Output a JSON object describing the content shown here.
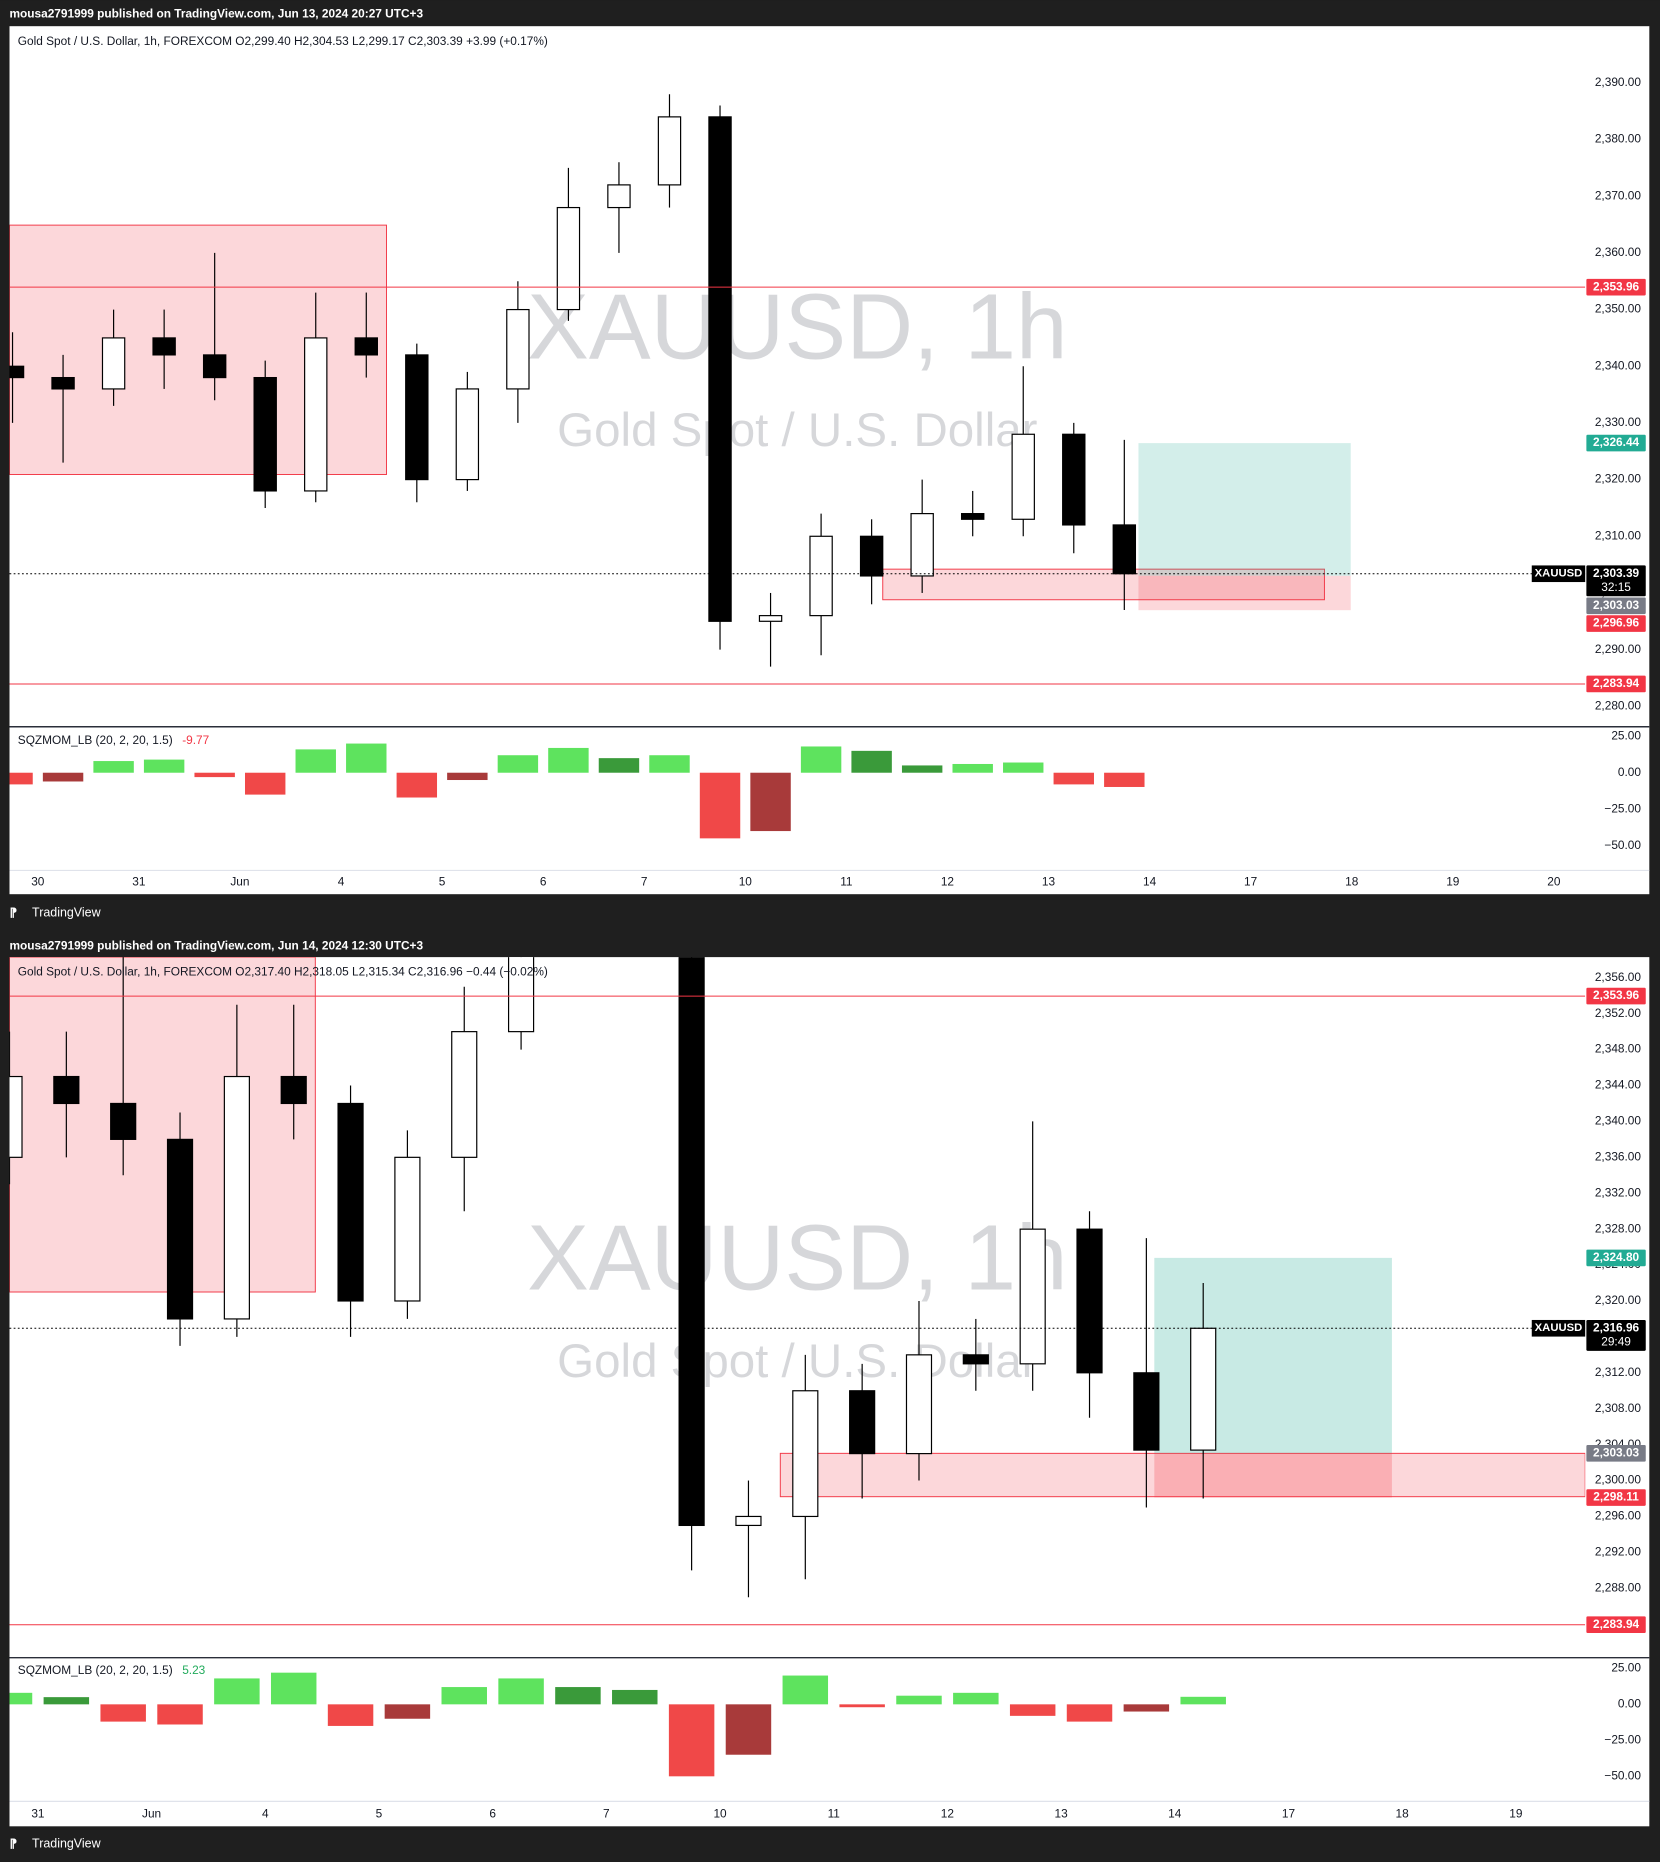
{
  "headers": [
    "mousa2791999 published on TradingView.com, Jun 13, 2024 20:27 UTC+3",
    "mousa2791999 published on TradingView.com, Jun 14, 2024 12:30 UTC+3"
  ],
  "brand": "TradingView",
  "chart_data": [
    {
      "type": "candlestick",
      "legend": "Gold Spot / U.S. Dollar, 1h, FOREXCOM  O2,299.40  H2,304.53  L2,299.17  C2,303.39  +3.99 (+0.17%)",
      "watermark": "XAUUSD, 1h",
      "watermark_sub": "Gold Spot / U.S. Dollar",
      "xlim": [
        -0.28,
        15.31
      ],
      "xticks": [
        {
          "value": 0,
          "label": "30"
        },
        {
          "value": 1,
          "label": "31"
        },
        {
          "value": 2,
          "label": "Jun"
        },
        {
          "value": 3,
          "label": "4"
        },
        {
          "value": 4,
          "label": "5"
        },
        {
          "value": 5,
          "label": "6"
        },
        {
          "value": 6,
          "label": "7"
        },
        {
          "value": 7,
          "label": "10"
        },
        {
          "value": 8,
          "label": "11"
        },
        {
          "value": 9,
          "label": "12"
        },
        {
          "value": 10,
          "label": "13"
        },
        {
          "value": 11,
          "label": "14"
        },
        {
          "value": 12,
          "label": "17"
        },
        {
          "value": 13,
          "label": "18"
        },
        {
          "value": 14,
          "label": "19"
        },
        {
          "value": 15,
          "label": "20"
        }
      ],
      "ylim": [
        2276.6,
        2400
      ],
      "yticks": [
        {
          "value": 2280,
          "label": "2,280.00"
        },
        {
          "value": 2290,
          "label": "2,290.00"
        },
        {
          "value": 2300,
          "label": "2,300.00"
        },
        {
          "value": 2310,
          "label": "2,310.00"
        },
        {
          "value": 2320,
          "label": "2,320.00"
        },
        {
          "value": 2330,
          "label": "2,330.00"
        },
        {
          "value": 2340,
          "label": "2,340.00"
        },
        {
          "value": 2350,
          "label": "2,350.00"
        },
        {
          "value": 2360,
          "label": "2,360.00"
        },
        {
          "value": 2370,
          "label": "2,370.00"
        },
        {
          "value": 2380,
          "label": "2,380.00"
        },
        {
          "value": 2390,
          "label": "2,390.00"
        }
      ],
      "grid": false,
      "up_color": "#ffffff",
      "down_color": "#000000",
      "wick_color": "#000000",
      "x": [
        -0.25,
        0.25,
        0.75,
        1.25,
        1.75,
        2.25,
        2.75,
        3.25,
        3.75,
        4.25,
        4.75,
        5.25,
        5.75,
        6.25,
        6.75,
        7.25,
        7.75,
        8.25,
        8.75,
        9.25,
        9.75,
        10.25,
        10.75
      ],
      "open": [
        2340,
        2338,
        2336,
        2345,
        2342,
        2338,
        2318,
        2345,
        2342,
        2320,
        2336,
        2350,
        2368,
        2372,
        2384,
        2295,
        2296,
        2310,
        2303,
        2314,
        2313,
        2328,
        2312
      ],
      "high": [
        2346,
        2342,
        2350,
        2350,
        2360,
        2341,
        2353,
        2353,
        2344,
        2339,
        2355,
        2375,
        2376,
        2388,
        2386,
        2300,
        2314,
        2313,
        2320,
        2318,
        2340,
        2330,
        2327
      ],
      "low": [
        2330,
        2323,
        2333,
        2336,
        2334,
        2315,
        2316,
        2338,
        2316,
        2318,
        2330,
        2348,
        2360,
        2368,
        2290,
        2287,
        2289,
        2298,
        2300,
        2310,
        2310,
        2307,
        2297
      ],
      "close": [
        2338,
        2336,
        2345,
        2342,
        2338,
        2318,
        2345,
        2342,
        2320,
        2336,
        2350,
        2368,
        2372,
        2384,
        2295,
        2296,
        2310,
        2303,
        2314,
        2313,
        2328,
        2312,
        2303.39
      ],
      "zones": [
        {
          "x": [
            -0.28,
            3.45
          ],
          "y": [
            2364.9,
            2320.9
          ],
          "color": "rgba(242,54,69,0.2)",
          "border": "#f23645"
        },
        {
          "x": [
            8.36,
            12.73
          ],
          "y": [
            2304.2,
            2298.8
          ],
          "color": "rgba(242,54,69,0.2)",
          "border": "#f23645"
        },
        {
          "x": [
            10.89,
            12.99
          ],
          "y": [
            2326.44,
            2303.03
          ],
          "color": "rgba(34,171,148,0.2)"
        },
        {
          "x": [
            10.89,
            12.99
          ],
          "y": [
            2303.03,
            2296.96
          ],
          "color": "rgba(242,54,69,0.2)"
        }
      ],
      "levels": [
        {
          "value": 2353.96,
          "label": "2,353.96",
          "color": "#f23645",
          "line": "solid"
        },
        {
          "value": 2326.44,
          "label": "2,326.44",
          "color": "#22ab94"
        },
        {
          "value": 2303.39,
          "label": "2,303.39",
          "sub": "32:15",
          "symbol": "XAUUSD",
          "color": "#000000",
          "line": "dotted"
        },
        {
          "value": 2303.03,
          "label": "2,303.03",
          "color": "#787b86"
        },
        {
          "value": 2296.96,
          "label": "2,296.96",
          "color": "#f23645"
        },
        {
          "value": 2283.94,
          "label": "2,283.94",
          "color": "#f23645",
          "line": "solid"
        }
      ],
      "indicator": {
        "title": "SQZMOM_LB (20, 2, 20, 1.5)",
        "value": -9.77,
        "value_color": "#f23645",
        "ylim": [
          -67,
          30.7
        ],
        "yticks": [
          {
            "value": 25,
            "label": "25.00"
          },
          {
            "value": 0,
            "label": "0.00"
          },
          {
            "value": -25,
            "label": "−25.00"
          },
          {
            "value": -50,
            "label": "−50.00"
          }
        ],
        "colors": {
          "pos_up": "#5ee35e",
          "pos_down": "#3a9a3a",
          "neg_down": "#f04848",
          "neg_up": "#a83a3a"
        },
        "values": [
          -8,
          -6,
          8,
          9,
          -3,
          -15,
          16,
          20,
          -17,
          -5,
          12,
          17,
          10,
          12,
          -45,
          -40,
          18,
          15,
          5,
          6,
          7,
          -8,
          -9.77
        ]
      }
    },
    {
      "type": "candlestick",
      "legend": "Gold Spot / U.S. Dollar, 1h, FOREXCOM  O2,317.40  H2,318.05  L2,315.34  C2,316.96  −0.44 (−0.02%)",
      "watermark": "XAUUSD, 1h",
      "watermark_sub": "Gold Spot / U.S. Dollar",
      "xlim": [
        -0.25,
        13.61
      ],
      "xticks": [
        {
          "value": 0,
          "label": "31"
        },
        {
          "value": 1,
          "label": "Jun"
        },
        {
          "value": 2,
          "label": "4"
        },
        {
          "value": 3,
          "label": "5"
        },
        {
          "value": 4,
          "label": "6"
        },
        {
          "value": 5,
          "label": "7"
        },
        {
          "value": 6,
          "label": "10"
        },
        {
          "value": 7,
          "label": "11"
        },
        {
          "value": 8,
          "label": "12"
        },
        {
          "value": 9,
          "label": "13"
        },
        {
          "value": 10,
          "label": "14"
        },
        {
          "value": 11,
          "label": "17"
        },
        {
          "value": 12,
          "label": "18"
        },
        {
          "value": 13,
          "label": "19"
        }
      ],
      "ylim": [
        2280.4,
        2358.3
      ],
      "yticks": [
        {
          "value": 2288,
          "label": "2,288.00"
        },
        {
          "value": 2292,
          "label": "2,292.00"
        },
        {
          "value": 2296,
          "label": "2,296.00"
        },
        {
          "value": 2300,
          "label": "2,300.00"
        },
        {
          "value": 2304,
          "label": "2,304.00"
        },
        {
          "value": 2308,
          "label": "2,308.00"
        },
        {
          "value": 2312,
          "label": "2,312.00"
        },
        {
          "value": 2316,
          "label": "2,316.00"
        },
        {
          "value": 2320,
          "label": "2,320.00"
        },
        {
          "value": 2324,
          "label": "2,324.00"
        },
        {
          "value": 2328,
          "label": "2,328.00"
        },
        {
          "value": 2332,
          "label": "2,332.00"
        },
        {
          "value": 2336,
          "label": "2,336.00"
        },
        {
          "value": 2340,
          "label": "2,340.00"
        },
        {
          "value": 2344,
          "label": "2,344.00"
        },
        {
          "value": 2348,
          "label": "2,348.00"
        },
        {
          "value": 2352,
          "label": "2,352.00"
        },
        {
          "value": 2356,
          "label": "2,356.00"
        }
      ],
      "grid": false,
      "up_color": "#ffffff",
      "down_color": "#000000",
      "wick_color": "#000000",
      "x": [
        -0.25,
        0.25,
        0.75,
        1.25,
        1.75,
        2.25,
        2.75,
        3.25,
        3.75,
        4.25,
        4.75,
        5.25,
        5.75,
        6.25,
        6.75,
        7.25,
        7.75,
        8.25,
        8.75,
        9.25,
        9.75,
        10.25
      ],
      "open": [
        2336,
        2345,
        2342,
        2338,
        2318,
        2345,
        2342,
        2320,
        2336,
        2350,
        2368,
        2372,
        2384,
        2295,
        2296,
        2310,
        2303,
        2314,
        2313,
        2328,
        2312,
        2303.39
      ],
      "high": [
        2350,
        2350,
        2360,
        2341,
        2353,
        2353,
        2344,
        2339,
        2355,
        2375,
        2376,
        2388,
        2386,
        2300,
        2314,
        2313,
        2320,
        2318,
        2340,
        2330,
        2327,
        2322
      ],
      "low": [
        2333,
        2336,
        2334,
        2315,
        2316,
        2338,
        2316,
        2318,
        2330,
        2348,
        2360,
        2368,
        2290,
        2287,
        2289,
        2298,
        2300,
        2310,
        2310,
        2307,
        2297,
        2298
      ],
      "close": [
        2345,
        2342,
        2338,
        2318,
        2345,
        2342,
        2320,
        2336,
        2350,
        2368,
        2372,
        2384,
        2295,
        2296,
        2310,
        2303,
        2314,
        2313,
        2328,
        2312,
        2303.39,
        2316.96
      ],
      "zones": [
        {
          "x": [
            -0.25,
            2.44
          ],
          "y": [
            2358.3,
            2321
          ],
          "color": "rgba(242,54,69,0.2)",
          "border": "#f23645"
        },
        {
          "x": [
            6.53,
            13.61
          ],
          "y": [
            2303.03,
            2298.2
          ],
          "color": "rgba(242,54,69,0.2)",
          "border": "#f23645"
        },
        {
          "x": [
            9.82,
            11.91
          ],
          "y": [
            2324.8,
            2303.03
          ],
          "color": "rgba(34,171,148,0.25)"
        },
        {
          "x": [
            9.82,
            11.91
          ],
          "y": [
            2303.03,
            2298.11
          ],
          "color": "rgba(242,54,69,0.25)"
        }
      ],
      "levels": [
        {
          "value": 2353.96,
          "label": "2,353.96",
          "color": "#f23645",
          "line": "solid"
        },
        {
          "value": 2324.8,
          "label": "2,324.80",
          "color": "#22ab94"
        },
        {
          "value": 2316.96,
          "label": "2,316.96",
          "sub": "29:49",
          "symbol": "XAUUSD",
          "color": "#000000",
          "line": "dotted"
        },
        {
          "value": 2303.03,
          "label": "2,303.03",
          "color": "#787b86"
        },
        {
          "value": 2298.11,
          "label": "2,298.11",
          "color": "#f23645"
        },
        {
          "value": 2283.94,
          "label": "2,283.94",
          "color": "#f23645",
          "line": "solid"
        }
      ],
      "indicator": {
        "title": "SQZMOM_LB (20, 2, 20, 1.5)",
        "value": 5.23,
        "value_color": "#22ab5c",
        "ylim": [
          -67.4,
          32.4
        ],
        "yticks": [
          {
            "value": 25,
            "label": "25.00"
          },
          {
            "value": 0,
            "label": "0.00"
          },
          {
            "value": -25,
            "label": "−25.00"
          },
          {
            "value": -50,
            "label": "−50.00"
          }
        ],
        "colors": {
          "pos_up": "#5ee35e",
          "pos_down": "#3a9a3a",
          "neg_down": "#f04848",
          "neg_up": "#a83a3a"
        },
        "values": [
          8,
          5,
          -12,
          -14,
          18,
          22,
          -15,
          -10,
          12,
          18,
          12,
          10,
          -50,
          -35,
          20,
          -2,
          6,
          8,
          -8,
          -12,
          -5,
          5.23
        ]
      }
    }
  ]
}
